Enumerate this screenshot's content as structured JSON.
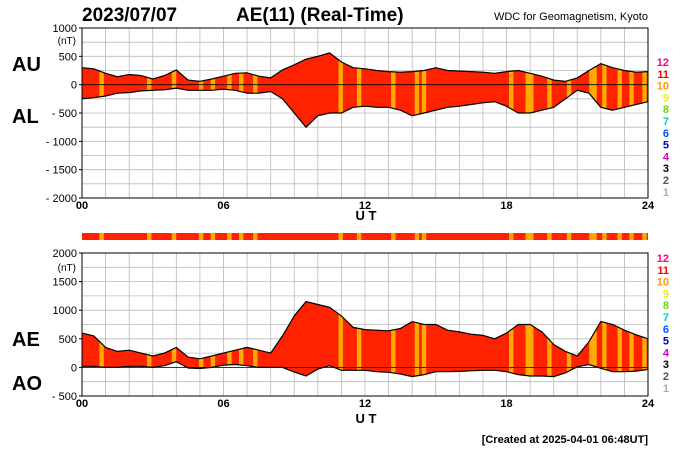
{
  "header": {
    "date": "2023/07/07",
    "title": "AE(11) (Real-Time)",
    "source": "WDC for Geomagnetism, Kyoto"
  },
  "footer": {
    "created": "[Created at 2025-04-01 06:48UT]"
  },
  "colors": {
    "fill_main": "#ff2200",
    "fill_band": "#ffaa00",
    "outline": "#000000",
    "grid": "#bbbbbb"
  },
  "station_legend": {
    "labels": [
      "12",
      "11",
      "10",
      "9",
      "8",
      "7",
      "6",
      "5",
      "4",
      "3",
      "2",
      "1"
    ],
    "colors": [
      "#ff0088",
      "#ff0000",
      "#ff9900",
      "#eeee00",
      "#66dd00",
      "#00cccc",
      "#0055ff",
      "#0000aa",
      "#cc00cc",
      "#000000",
      "#555555",
      "#aaaaaa"
    ]
  },
  "chart_data": [
    {
      "type": "area",
      "panel": "AU/AL",
      "series_labels": [
        "AU",
        "AL"
      ],
      "units_label": "(nT)",
      "xlabel": "U T",
      "xlim": [
        0,
        24
      ],
      "ylim": [
        -2000,
        1000
      ],
      "yticks": [
        1000,
        500,
        0,
        -500,
        -1000,
        -1500,
        -2000
      ],
      "yticklabels": [
        "1000",
        "500",
        "0",
        "- 500",
        "- 1000",
        "- 1500",
        "- 2000"
      ],
      "xticks": [
        0,
        6,
        12,
        18,
        24
      ],
      "xticklabels": [
        "00",
        "06",
        "12",
        "18",
        "24"
      ],
      "grid": true,
      "x": [
        0,
        0.5,
        1,
        1.5,
        2,
        2.5,
        3,
        3.5,
        4,
        4.5,
        5,
        5.5,
        6,
        6.5,
        7,
        7.5,
        8,
        8.5,
        9,
        9.5,
        10,
        10.5,
        11,
        11.5,
        12,
        12.5,
        13,
        13.5,
        14,
        14.5,
        15,
        15.5,
        16,
        16.5,
        17,
        17.5,
        18,
        18.5,
        19,
        19.5,
        20,
        20.5,
        21,
        21.5,
        22,
        22.5,
        23,
        23.5,
        24
      ],
      "AU": [
        300,
        280,
        200,
        140,
        180,
        160,
        100,
        160,
        260,
        80,
        60,
        100,
        150,
        200,
        210,
        150,
        120,
        260,
        350,
        450,
        500,
        560,
        400,
        300,
        280,
        250,
        230,
        220,
        230,
        250,
        300,
        250,
        240,
        230,
        220,
        200,
        230,
        250,
        200,
        150,
        80,
        60,
        120,
        250,
        370,
        300,
        250,
        220,
        230
      ],
      "AL": [
        -250,
        -230,
        -200,
        -150,
        -140,
        -110,
        -100,
        -90,
        -60,
        -100,
        -100,
        -100,
        -80,
        -100,
        -150,
        -150,
        -120,
        -250,
        -500,
        -750,
        -550,
        -500,
        -500,
        -400,
        -380,
        -400,
        -400,
        -450,
        -550,
        -500,
        -450,
        -400,
        -380,
        -350,
        -320,
        -300,
        -380,
        -500,
        -500,
        -450,
        -400,
        -250,
        -100,
        -150,
        -400,
        -450,
        -400,
        -350,
        -300
      ],
      "color_band_hours": [
        0.83,
        2.85,
        3.9,
        5.05,
        5.55,
        6.25,
        6.75,
        7.35,
        10.97,
        11.75,
        13.2,
        14.2,
        14.5,
        18.2,
        18.9,
        19.05,
        19.82,
        20.65,
        21.6,
        21.73,
        22.15,
        22.8,
        23.3,
        23.85
      ]
    },
    {
      "type": "area",
      "panel": "AE/AO",
      "series_labels": [
        "AE",
        "AO"
      ],
      "units_label": "(nT)",
      "xlabel": "U T",
      "xlim": [
        0,
        24
      ],
      "ylim": [
        -500,
        2000
      ],
      "yticks": [
        2000,
        1500,
        1000,
        500,
        0,
        -500
      ],
      "yticklabels": [
        "2000",
        "1500",
        "1000",
        "500",
        "0",
        "- 500"
      ],
      "xticks": [
        0,
        6,
        12,
        18,
        24
      ],
      "xticklabels": [
        "00",
        "06",
        "12",
        "18",
        "24"
      ],
      "grid": true,
      "x": [
        0,
        0.5,
        1,
        1.5,
        2,
        2.5,
        3,
        3.5,
        4,
        4.5,
        5,
        5.5,
        6,
        6.5,
        7,
        7.5,
        8,
        8.5,
        9,
        9.5,
        10,
        10.5,
        11,
        11.5,
        12,
        12.5,
        13,
        13.5,
        14,
        14.5,
        15,
        15.5,
        16,
        16.5,
        17,
        17.5,
        18,
        18.5,
        19,
        19.5,
        20,
        20.5,
        21,
        21.5,
        22,
        22.5,
        23,
        23.5,
        24
      ],
      "AE": [
        600,
        550,
        350,
        280,
        300,
        250,
        200,
        250,
        350,
        180,
        150,
        200,
        250,
        300,
        350,
        300,
        250,
        550,
        900,
        1150,
        1100,
        1050,
        900,
        700,
        660,
        650,
        640,
        680,
        800,
        750,
        750,
        650,
        620,
        580,
        560,
        500,
        600,
        750,
        750,
        620,
        400,
        280,
        200,
        450,
        800,
        750,
        650,
        570,
        500
      ],
      "AO": [
        20,
        20,
        0,
        0,
        20,
        20,
        0,
        30,
        100,
        -10,
        -20,
        0,
        40,
        50,
        30,
        0,
        0,
        0,
        -80,
        -150,
        -30,
        30,
        -50,
        -50,
        -50,
        -75,
        -85,
        -115,
        -160,
        -125,
        -75,
        -75,
        -70,
        -60,
        -50,
        -50,
        -75,
        -125,
        -150,
        -150,
        -160,
        -95,
        10,
        50,
        -15,
        -75,
        -75,
        -65,
        -35
      ],
      "color_band_hours": [
        0.83,
        2.85,
        3.9,
        5.05,
        5.55,
        6.25,
        6.75,
        7.35,
        10.97,
        11.75,
        13.2,
        14.2,
        14.5,
        18.2,
        18.9,
        19.05,
        19.82,
        20.65,
        21.6,
        21.73,
        22.15,
        22.8,
        23.3,
        23.85
      ]
    }
  ]
}
